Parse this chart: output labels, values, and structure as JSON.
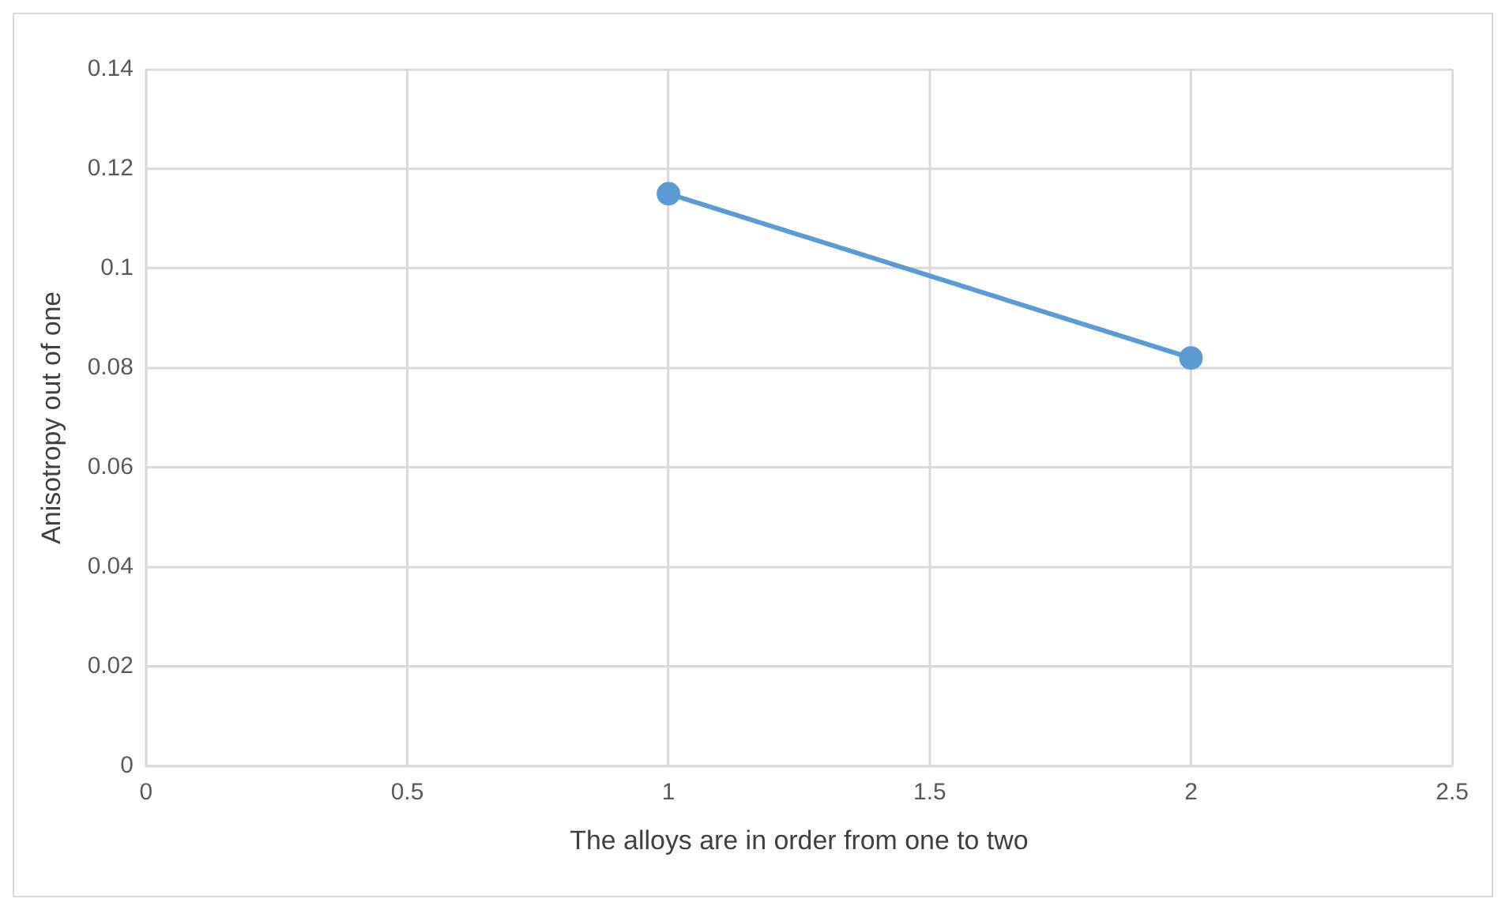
{
  "chart_data": {
    "type": "line",
    "xlabel": "The alloys are in order from one to two",
    "ylabel": "Anisotropy out of one",
    "x": [
      1,
      2
    ],
    "series": [
      {
        "color": "#5b9bd5",
        "values": [
          0.115,
          0.082
        ]
      }
    ],
    "xlim": [
      0,
      2.5
    ],
    "xticks": [
      0,
      0.5,
      1,
      1.5,
      2,
      2.5
    ],
    "ylim": [
      0,
      0.14
    ],
    "yticks": [
      0,
      0.02,
      0.04,
      0.06,
      0.08,
      0.1,
      0.12,
      0.14
    ],
    "grid": true,
    "marker": "circle",
    "line_style": "solid",
    "legend": false
  }
}
